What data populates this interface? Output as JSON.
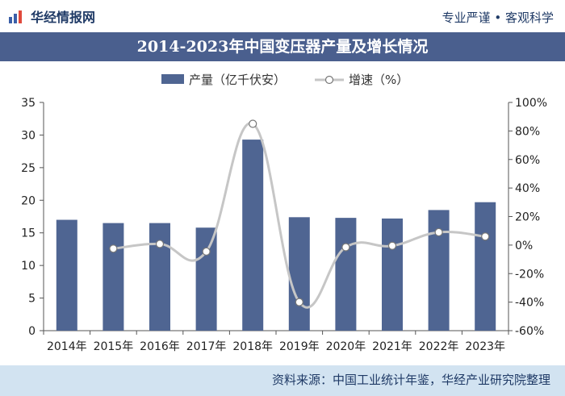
{
  "header": {
    "brand": "华经情报网",
    "tagline": "专业严谨 • 客观科学"
  },
  "source": "资料来源：中国工业统计年鉴，华经产业研究院整理",
  "colors": {
    "bar": "#4f6592",
    "line": "#c6c6c6",
    "marker_fill": "#ffffff",
    "title_bg": "#4a5f8e",
    "footer_bg": "#d2e3f1"
  },
  "icons": [
    "bar-chart-logo-icon"
  ],
  "chart_data": {
    "type": "bar",
    "title": "2014-2023年中国变压器产量及增长情况",
    "categories": [
      "2014年",
      "2015年",
      "2016年",
      "2017年",
      "2018年",
      "2019年",
      "2020年",
      "2021年",
      "2022年",
      "2023年"
    ],
    "series": [
      {
        "name": "产量（亿千伏安）",
        "type": "bar",
        "axis": "left",
        "values": [
          17.0,
          16.5,
          16.5,
          15.8,
          29.3,
          17.4,
          17.3,
          17.2,
          18.5,
          19.7
        ]
      },
      {
        "name": "增速（%）",
        "type": "line",
        "axis": "right",
        "values": [
          null,
          -2.5,
          0.8,
          -4.5,
          85.0,
          -40.0,
          -1.5,
          -0.5,
          9.0,
          6.0
        ]
      }
    ],
    "ylim_left": [
      0,
      35
    ],
    "yticks_left": [
      0,
      5,
      10,
      15,
      20,
      25,
      30,
      35
    ],
    "ylim_right": [
      -60,
      100
    ],
    "yticks_right": [
      "-60%",
      "-40%",
      "-20%",
      "0%",
      "20%",
      "40%",
      "60%",
      "80%",
      "100%"
    ],
    "legend_position": "top-center",
    "grid": false
  }
}
